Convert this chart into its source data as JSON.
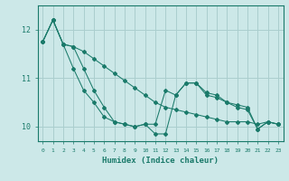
{
  "background_color": "#cce8e8",
  "grid_color": "#aacece",
  "line_color": "#1a7a6a",
  "xlabel": "Humidex (Indice chaleur)",
  "xlim": [
    -0.5,
    23.5
  ],
  "ylim": [
    9.7,
    12.5
  ],
  "yticks": [
    10,
    11,
    12
  ],
  "xticks": [
    0,
    1,
    2,
    3,
    4,
    5,
    6,
    7,
    8,
    9,
    10,
    11,
    12,
    13,
    14,
    15,
    16,
    17,
    18,
    19,
    20,
    21,
    22,
    23
  ],
  "series": [
    [
      11.75,
      12.2,
      11.7,
      11.65,
      11.55,
      11.4,
      11.25,
      11.1,
      10.95,
      10.8,
      10.65,
      10.5,
      10.4,
      10.35,
      10.3,
      10.25,
      10.2,
      10.15,
      10.1,
      10.1,
      10.1,
      10.05,
      10.1,
      10.05
    ],
    [
      11.75,
      12.2,
      11.7,
      11.65,
      11.2,
      10.75,
      10.4,
      10.1,
      10.05,
      10.0,
      10.05,
      10.05,
      10.75,
      10.65,
      10.9,
      10.9,
      10.7,
      10.65,
      10.5,
      10.45,
      10.4,
      9.95,
      10.1,
      10.05
    ],
    [
      11.75,
      12.2,
      11.7,
      11.2,
      10.75,
      10.5,
      10.2,
      10.1,
      10.05,
      10.0,
      10.05,
      9.85,
      9.85,
      10.65,
      10.9,
      10.9,
      10.65,
      10.6,
      10.5,
      10.4,
      10.35,
      9.95,
      10.1,
      10.05
    ]
  ]
}
